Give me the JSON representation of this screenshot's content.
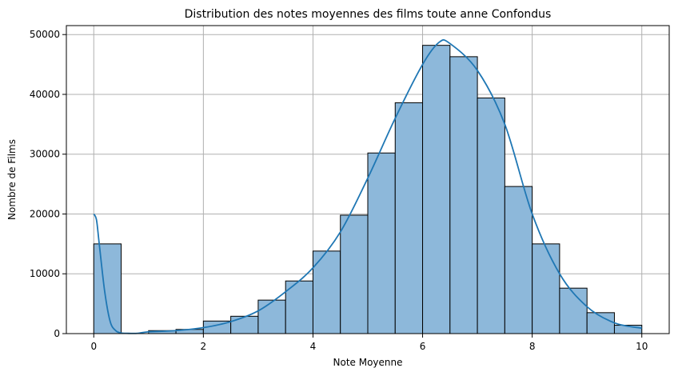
{
  "chart_data": {
    "type": "bar",
    "subtype": "histogram",
    "title": "Distribution des notes moyennes des films toute anne Confondus",
    "xlabel": "Note Moyenne",
    "ylabel": "Nombre de Films",
    "xlim": [
      -0.5,
      10.5
    ],
    "ylim": [
      0,
      51500
    ],
    "xticks": [
      0,
      2,
      4,
      6,
      8,
      10
    ],
    "yticks": [
      0,
      10000,
      20000,
      30000,
      40000,
      50000
    ],
    "grid": true,
    "bin_width": 0.5,
    "bins": [
      {
        "start": 0.0,
        "end": 0.5,
        "count": 15000
      },
      {
        "start": 0.5,
        "end": 1.0,
        "count": 0
      },
      {
        "start": 1.0,
        "end": 1.5,
        "count": 500
      },
      {
        "start": 1.5,
        "end": 2.0,
        "count": 700
      },
      {
        "start": 2.0,
        "end": 2.5,
        "count": 2100
      },
      {
        "start": 2.5,
        "end": 3.0,
        "count": 2900
      },
      {
        "start": 3.0,
        "end": 3.5,
        "count": 5600
      },
      {
        "start": 3.5,
        "end": 4.0,
        "count": 8800
      },
      {
        "start": 4.0,
        "end": 4.5,
        "count": 13800
      },
      {
        "start": 4.5,
        "end": 5.0,
        "count": 19800
      },
      {
        "start": 5.0,
        "end": 5.5,
        "count": 30200
      },
      {
        "start": 5.5,
        "end": 6.0,
        "count": 38600
      },
      {
        "start": 6.0,
        "end": 6.5,
        "count": 48200
      },
      {
        "start": 6.5,
        "end": 7.0,
        "count": 46300
      },
      {
        "start": 7.0,
        "end": 7.5,
        "count": 39400
      },
      {
        "start": 7.5,
        "end": 8.0,
        "count": 24600
      },
      {
        "start": 8.0,
        "end": 8.5,
        "count": 15000
      },
      {
        "start": 8.5,
        "end": 9.0,
        "count": 7600
      },
      {
        "start": 9.0,
        "end": 9.5,
        "count": 3500
      },
      {
        "start": 9.5,
        "end": 10.0,
        "count": 1400
      }
    ],
    "kde": {
      "x": [
        0,
        0.05,
        0.1,
        0.2,
        0.3,
        0.4,
        0.5,
        0.6,
        0.8,
        1.0,
        1.5,
        2.0,
        2.5,
        3.0,
        3.5,
        4.0,
        4.5,
        5.0,
        5.5,
        6.0,
        6.3,
        6.5,
        7.0,
        7.5,
        8.0,
        8.5,
        9.0,
        9.5,
        10.0
      ],
      "y": [
        20000,
        19000,
        15000,
        7000,
        2000,
        500,
        100,
        50,
        50,
        300,
        500,
        1000,
        2000,
        3800,
        7000,
        11000,
        17000,
        26000,
        36000,
        45000,
        48700,
        48500,
        44000,
        35000,
        20000,
        10000,
        4500,
        1800,
        900
      ]
    },
    "colors": {
      "bar_fill": "#8db8da",
      "bar_edge": "#000000",
      "kde_line": "#1f77b4",
      "grid": "#b0b0b0"
    }
  }
}
